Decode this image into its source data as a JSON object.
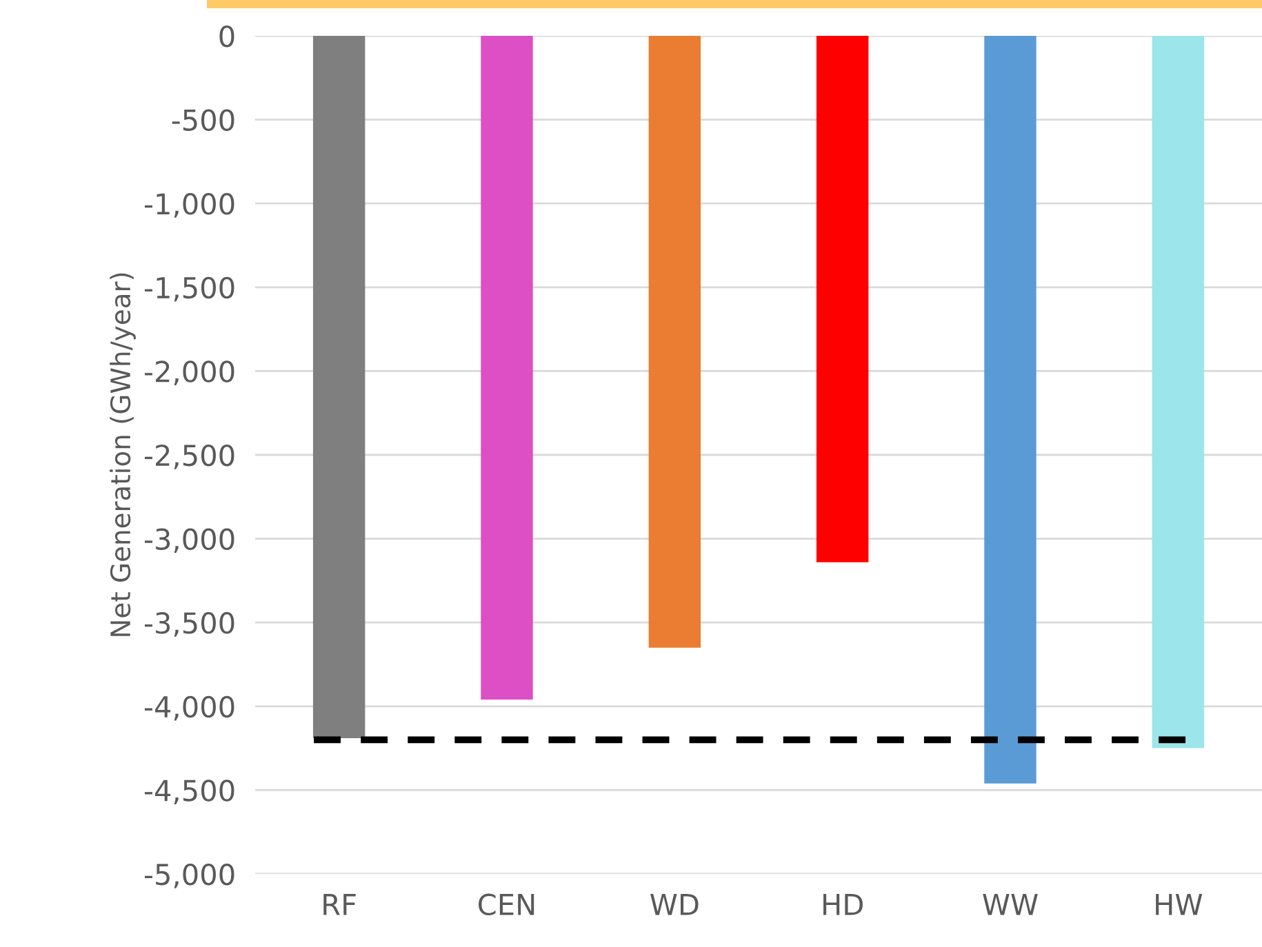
{
  "chart_data": {
    "type": "bar",
    "ylabel": "Net Generation (GWh/year)",
    "categories": [
      "RF",
      "CEN",
      "WD",
      "HD",
      "WW",
      "HW"
    ],
    "values": [
      -4190,
      -3960,
      -3650,
      -3140,
      -4460,
      -4250
    ],
    "colors": [
      "#7f7f7f",
      "#dd4fc4",
      "#ea7d31",
      "#ff0000",
      "#5b9bd5",
      "#9ce5ea"
    ],
    "ylim": [
      -5000,
      0
    ],
    "yticks": [
      {
        "value": -5000,
        "label": "-5,000"
      },
      {
        "value": -4500,
        "label": "-4,500"
      },
      {
        "value": -4000,
        "label": "-4,000"
      },
      {
        "value": -3500,
        "label": "-3,500"
      },
      {
        "value": -3000,
        "label": "-3,000"
      },
      {
        "value": -2500,
        "label": "-2,500"
      },
      {
        "value": -2000,
        "label": "-2,000"
      },
      {
        "value": -1500,
        "label": "-1,500"
      },
      {
        "value": -1000,
        "label": "-1,000"
      },
      {
        "value": -500,
        "label": "-500"
      },
      0
    ],
    "grid": "y",
    "ref_lines": [
      {
        "axis": "y",
        "value": -4200,
        "color": "#000000",
        "line_style": "dashed"
      }
    ]
  }
}
